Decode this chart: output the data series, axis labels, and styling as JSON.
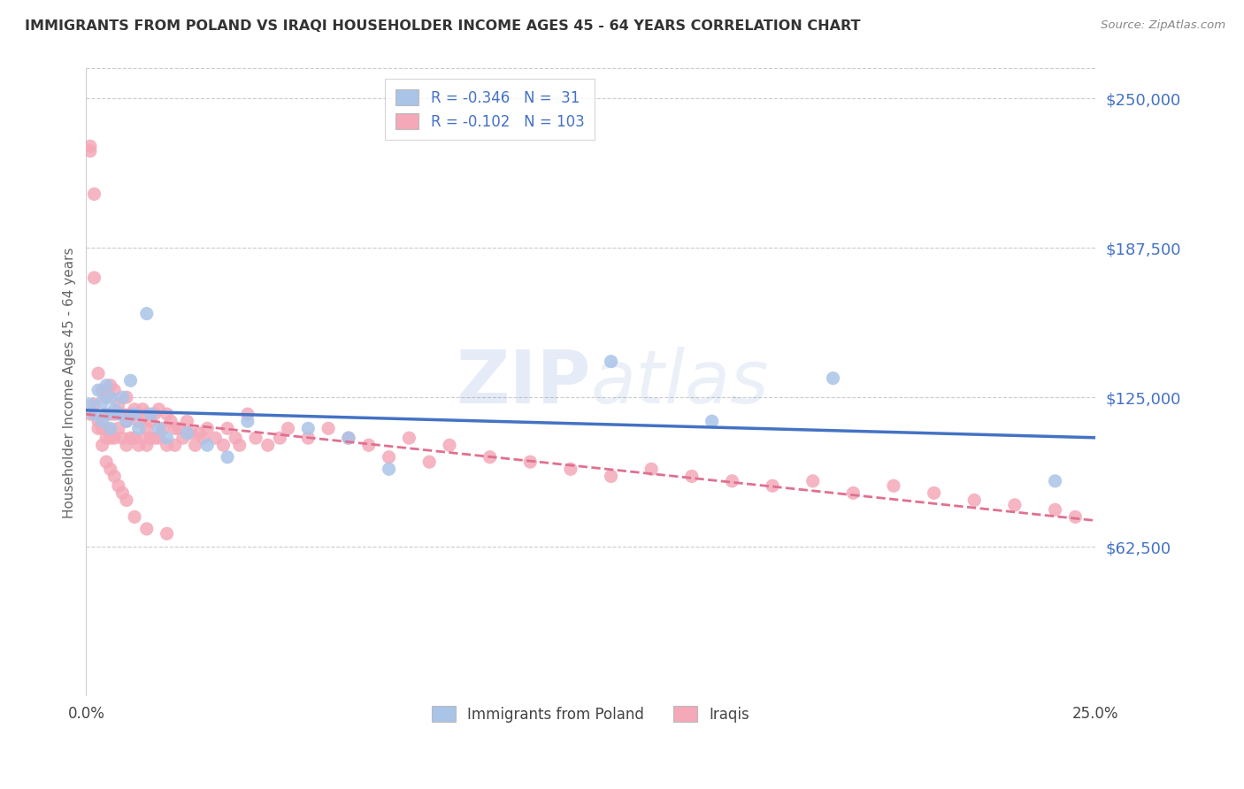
{
  "title": "IMMIGRANTS FROM POLAND VS IRAQI HOUSEHOLDER INCOME AGES 45 - 64 YEARS CORRELATION CHART",
  "source": "Source: ZipAtlas.com",
  "ylabel": "Householder Income Ages 45 - 64 years",
  "ytick_values": [
    62500,
    125000,
    187500,
    250000
  ],
  "ymin": 0,
  "ymax": 262500,
  "xmin": 0.0,
  "xmax": 0.25,
  "poland_R": -0.346,
  "poland_N": 31,
  "iraqi_R": -0.102,
  "iraqi_N": 103,
  "poland_color": "#aac4e8",
  "iraqi_color": "#f4a8b8",
  "poland_line_color": "#4472c4",
  "iraqi_line_color": "#e07090",
  "background_color": "#ffffff",
  "watermark_zip": "ZIP",
  "watermark_atlas": "atlas",
  "legend_label_poland": "Immigrants from Poland",
  "legend_label_iraqi": "Iraqis",
  "poland_x": [
    0.001,
    0.002,
    0.003,
    0.004,
    0.004,
    0.005,
    0.005,
    0.006,
    0.006,
    0.007,
    0.008,
    0.009,
    0.01,
    0.011,
    0.012,
    0.013,
    0.015,
    0.016,
    0.018,
    0.02,
    0.025,
    0.03,
    0.035,
    0.04,
    0.055,
    0.065,
    0.075,
    0.13,
    0.155,
    0.185,
    0.24
  ],
  "poland_y": [
    122000,
    118000,
    128000,
    123000,
    115000,
    130000,
    118000,
    125000,
    112000,
    120000,
    118000,
    125000,
    115000,
    132000,
    118000,
    112000,
    160000,
    118000,
    112000,
    108000,
    110000,
    105000,
    100000,
    115000,
    112000,
    108000,
    95000,
    140000,
    115000,
    133000,
    90000
  ],
  "iraqi_x": [
    0.001,
    0.001,
    0.002,
    0.002,
    0.003,
    0.003,
    0.004,
    0.004,
    0.005,
    0.005,
    0.005,
    0.005,
    0.006,
    0.006,
    0.006,
    0.007,
    0.007,
    0.007,
    0.008,
    0.008,
    0.009,
    0.009,
    0.01,
    0.01,
    0.01,
    0.011,
    0.011,
    0.012,
    0.012,
    0.013,
    0.013,
    0.014,
    0.014,
    0.015,
    0.015,
    0.015,
    0.016,
    0.016,
    0.017,
    0.017,
    0.018,
    0.018,
    0.019,
    0.02,
    0.02,
    0.021,
    0.022,
    0.022,
    0.023,
    0.024,
    0.025,
    0.026,
    0.027,
    0.028,
    0.029,
    0.03,
    0.032,
    0.034,
    0.035,
    0.037,
    0.038,
    0.04,
    0.042,
    0.045,
    0.048,
    0.05,
    0.055,
    0.06,
    0.065,
    0.07,
    0.075,
    0.08,
    0.085,
    0.09,
    0.1,
    0.11,
    0.12,
    0.13,
    0.14,
    0.15,
    0.16,
    0.17,
    0.18,
    0.19,
    0.2,
    0.21,
    0.22,
    0.23,
    0.24,
    0.245,
    0.001,
    0.002,
    0.003,
    0.004,
    0.005,
    0.006,
    0.007,
    0.008,
    0.009,
    0.01,
    0.012,
    0.015,
    0.02
  ],
  "iraqi_y": [
    230000,
    228000,
    210000,
    175000,
    135000,
    115000,
    128000,
    112000,
    125000,
    118000,
    112000,
    108000,
    130000,
    118000,
    108000,
    128000,
    118000,
    108000,
    122000,
    112000,
    118000,
    108000,
    125000,
    115000,
    105000,
    118000,
    108000,
    120000,
    108000,
    115000,
    105000,
    120000,
    108000,
    118000,
    112000,
    105000,
    115000,
    108000,
    118000,
    108000,
    120000,
    108000,
    112000,
    118000,
    105000,
    115000,
    112000,
    105000,
    112000,
    108000,
    115000,
    110000,
    105000,
    110000,
    108000,
    112000,
    108000,
    105000,
    112000,
    108000,
    105000,
    118000,
    108000,
    105000,
    108000,
    112000,
    108000,
    112000,
    108000,
    105000,
    100000,
    108000,
    98000,
    105000,
    100000,
    98000,
    95000,
    92000,
    95000,
    92000,
    90000,
    88000,
    90000,
    85000,
    88000,
    85000,
    82000,
    80000,
    78000,
    75000,
    118000,
    122000,
    112000,
    105000,
    98000,
    95000,
    92000,
    88000,
    85000,
    82000,
    75000,
    70000,
    68000
  ]
}
